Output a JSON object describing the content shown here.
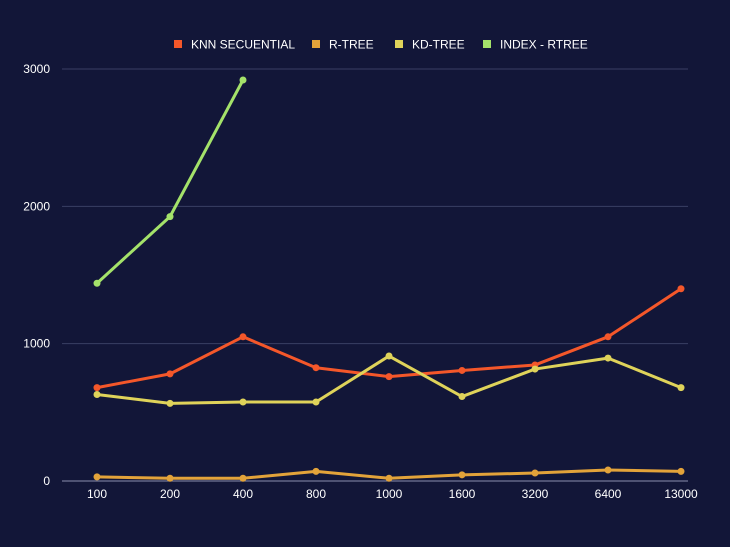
{
  "chart_data": {
    "type": "line",
    "categories": [
      "100",
      "200",
      "400",
      "800",
      "1000",
      "1600",
      "3200",
      "6400",
      "13000"
    ],
    "series": [
      {
        "name": "KNN SECUENTIAL",
        "color": "#f4572a",
        "values": [
          680,
          780,
          1050,
          825,
          760,
          805,
          845,
          1050,
          1400
        ]
      },
      {
        "name": "R-TREE",
        "color": "#e3a33a",
        "values": [
          30,
          20,
          20,
          70,
          20,
          45,
          58,
          80,
          70
        ]
      },
      {
        "name": "KD-TREE",
        "color": "#dfd35a",
        "values": [
          630,
          565,
          575,
          575,
          910,
          615,
          815,
          895,
          680
        ]
      },
      {
        "name": "INDEX - RTREE",
        "color": "#a4e26a",
        "values": [
          1440,
          1925,
          2920,
          null,
          null,
          null,
          null,
          null,
          null
        ]
      }
    ],
    "y_ticks": [
      "0",
      "1000",
      "2000",
      "3000"
    ],
    "ylim": [
      0,
      3000
    ],
    "grid": true,
    "legend": "top-center",
    "title": "",
    "xlabel": "",
    "ylabel": ""
  }
}
